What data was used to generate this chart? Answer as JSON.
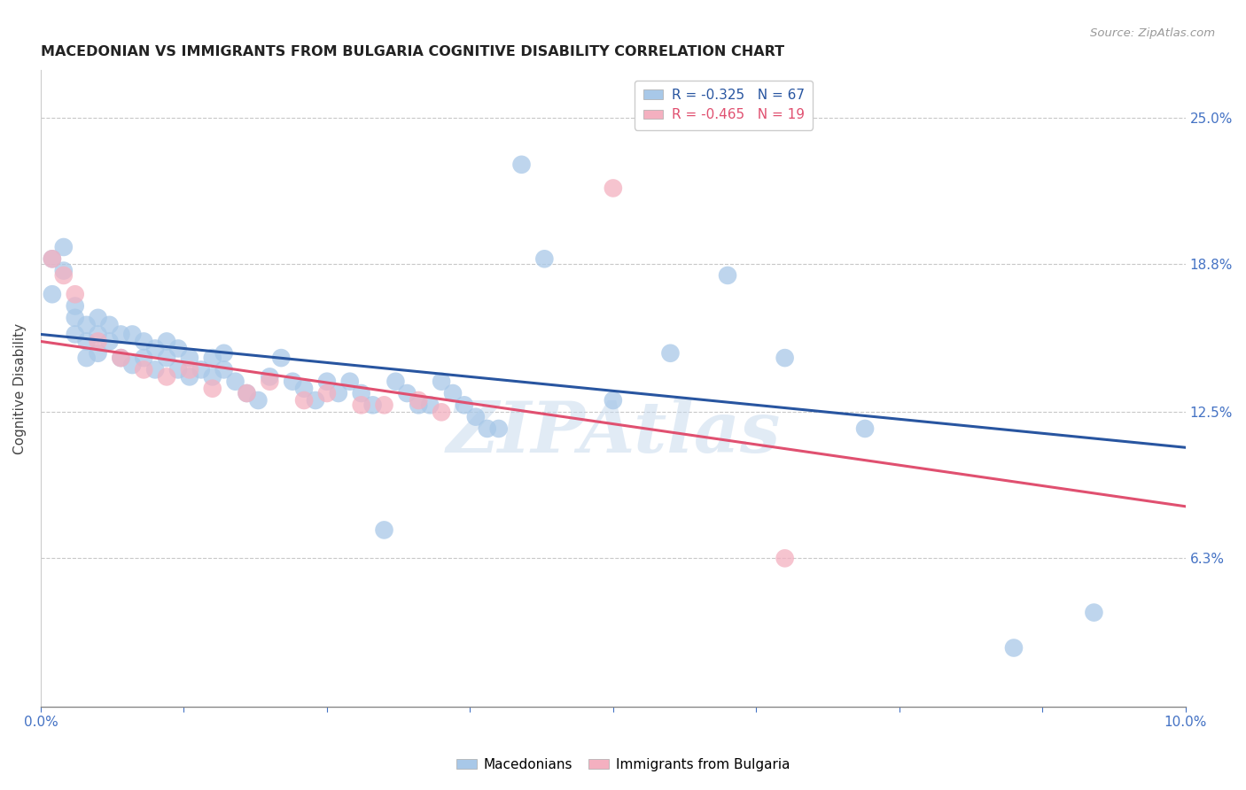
{
  "title": "MACEDONIAN VS IMMIGRANTS FROM BULGARIA COGNITIVE DISABILITY CORRELATION CHART",
  "source": "Source: ZipAtlas.com",
  "ylabel": "Cognitive Disability",
  "ytick_labels": [
    "25.0%",
    "18.8%",
    "12.5%",
    "6.3%"
  ],
  "ytick_values": [
    0.25,
    0.188,
    0.125,
    0.063
  ],
  "xlim": [
    0.0,
    0.1
  ],
  "ylim": [
    0.0,
    0.27
  ],
  "legend_blue_R": "R = -0.325",
  "legend_blue_N": "N = 67",
  "legend_pink_R": "R = -0.465",
  "legend_pink_N": "N = 19",
  "blue_scatter_x": [
    0.001,
    0.001,
    0.002,
    0.002,
    0.003,
    0.003,
    0.003,
    0.004,
    0.004,
    0.004,
    0.005,
    0.005,
    0.005,
    0.006,
    0.006,
    0.007,
    0.007,
    0.008,
    0.008,
    0.009,
    0.009,
    0.01,
    0.01,
    0.011,
    0.011,
    0.012,
    0.012,
    0.013,
    0.013,
    0.014,
    0.015,
    0.015,
    0.016,
    0.016,
    0.017,
    0.018,
    0.019,
    0.02,
    0.021,
    0.022,
    0.023,
    0.024,
    0.025,
    0.026,
    0.027,
    0.028,
    0.029,
    0.03,
    0.031,
    0.032,
    0.033,
    0.034,
    0.035,
    0.036,
    0.037,
    0.038,
    0.039,
    0.04,
    0.042,
    0.044,
    0.05,
    0.055,
    0.06,
    0.065,
    0.072,
    0.085,
    0.092
  ],
  "blue_scatter_y": [
    0.19,
    0.175,
    0.195,
    0.185,
    0.17,
    0.165,
    0.158,
    0.162,
    0.155,
    0.148,
    0.165,
    0.158,
    0.15,
    0.162,
    0.155,
    0.158,
    0.148,
    0.158,
    0.145,
    0.155,
    0.148,
    0.152,
    0.143,
    0.155,
    0.148,
    0.152,
    0.143,
    0.148,
    0.14,
    0.143,
    0.148,
    0.14,
    0.15,
    0.143,
    0.138,
    0.133,
    0.13,
    0.14,
    0.148,
    0.138,
    0.135,
    0.13,
    0.138,
    0.133,
    0.138,
    0.133,
    0.128,
    0.075,
    0.138,
    0.133,
    0.128,
    0.128,
    0.138,
    0.133,
    0.128,
    0.123,
    0.118,
    0.118,
    0.23,
    0.19,
    0.13,
    0.15,
    0.183,
    0.148,
    0.118,
    0.025,
    0.04
  ],
  "pink_scatter_x": [
    0.001,
    0.002,
    0.003,
    0.005,
    0.007,
    0.009,
    0.011,
    0.013,
    0.015,
    0.018,
    0.02,
    0.023,
    0.025,
    0.028,
    0.03,
    0.033,
    0.035,
    0.05,
    0.065
  ],
  "pink_scatter_y": [
    0.19,
    0.183,
    0.175,
    0.155,
    0.148,
    0.143,
    0.14,
    0.143,
    0.135,
    0.133,
    0.138,
    0.13,
    0.133,
    0.128,
    0.128,
    0.13,
    0.125,
    0.22,
    0.063
  ],
  "blue_line_x": [
    0.0,
    0.1
  ],
  "blue_line_y": [
    0.158,
    0.11
  ],
  "pink_line_x": [
    0.0,
    0.1
  ],
  "pink_line_y": [
    0.155,
    0.085
  ],
  "blue_color": "#a8c8e8",
  "pink_color": "#f4b0c0",
  "blue_line_color": "#2855a0",
  "pink_line_color": "#e05070",
  "background_color": "#ffffff",
  "watermark": "ZIPAtlas",
  "grid_color": "#c8c8c8",
  "xtick_positions": [
    0.0,
    0.0125,
    0.025,
    0.0375,
    0.05,
    0.0625,
    0.075,
    0.0875,
    0.1
  ]
}
